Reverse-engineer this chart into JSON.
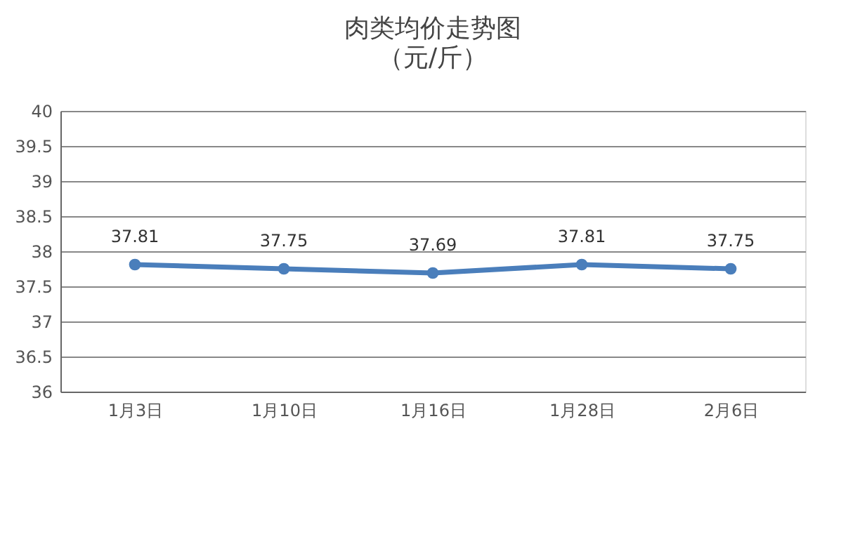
{
  "chart_data": {
    "type": "line",
    "title": "肉类均价走势图",
    "subtitle": "（元/斤）",
    "categories": [
      "1月3日",
      "1月10日",
      "1月16日",
      "1月28日",
      "2月6日"
    ],
    "values": [
      37.81,
      37.75,
      37.69,
      37.81,
      37.75
    ],
    "color": "#4a7ebb",
    "ylim": [
      36,
      40
    ],
    "yticks": [
      36,
      36.5,
      37,
      37.5,
      38,
      38.5,
      39,
      39.5,
      40
    ],
    "grid": "y",
    "marker": "circle",
    "line_style": "solid",
    "data_labels": true
  }
}
